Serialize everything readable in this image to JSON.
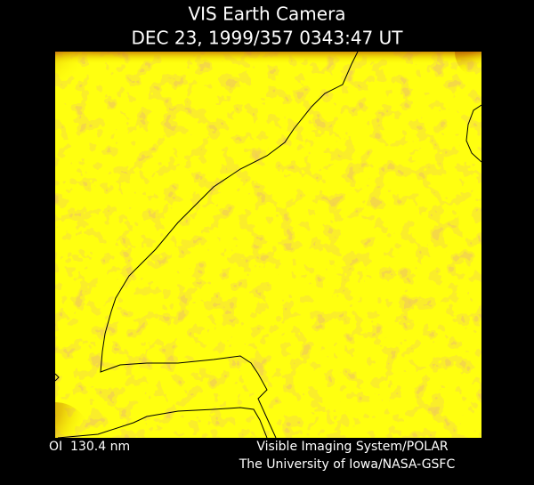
{
  "header": {
    "title": "VIS Earth Camera",
    "subtitle": "DEC 23, 1999/357 0343:47 UT"
  },
  "footer": {
    "filter": "OI  130.4 nm",
    "credit_lines": [
      "Visible Imaging System/POLAR",
      "The University of Iowa/NASA-GSFC"
    ]
  }
}
